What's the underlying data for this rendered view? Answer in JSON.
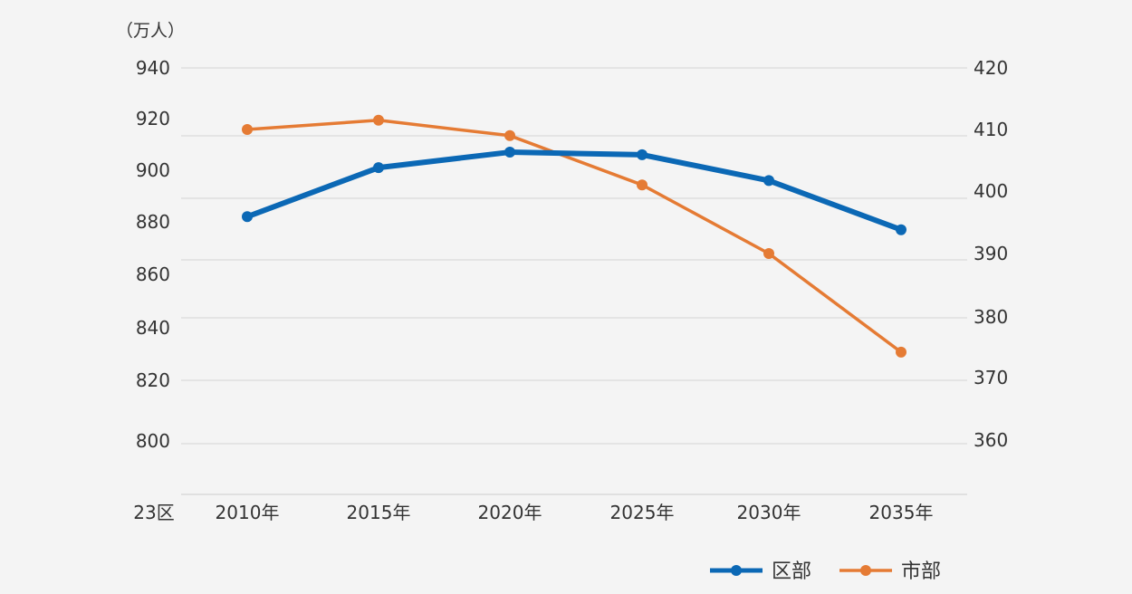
{
  "chart_data": {
    "type": "line",
    "unit_label": "（万人）",
    "corner_label": "23区",
    "categories": [
      "2010年",
      "2015年",
      "2020年",
      "2025年",
      "2030年",
      "2035年"
    ],
    "y_left": {
      "ticks": [
        940,
        920,
        900,
        880,
        860,
        840,
        820,
        800
      ],
      "tick_labels": [
        "940",
        "920",
        "900",
        "880",
        "860",
        "840",
        "820",
        "800"
      ]
    },
    "y_right": {
      "ticks": [
        420,
        410,
        400,
        390,
        380,
        370,
        360
      ],
      "tick_labels": [
        "420",
        "410",
        "400",
        "390",
        "380",
        "370",
        "360"
      ]
    },
    "grid": true,
    "legend_position": "bottom-right",
    "series": [
      {
        "name": "区部",
        "axis": "left",
        "color": "#0b68b5",
        "values": [
          882,
          901,
          907,
          906,
          896,
          877
        ]
      },
      {
        "name": "市部",
        "axis": "right",
        "color": "#e57b34",
        "values": [
          410,
          411.5,
          409,
          401,
          390,
          374.2
        ]
      }
    ]
  }
}
